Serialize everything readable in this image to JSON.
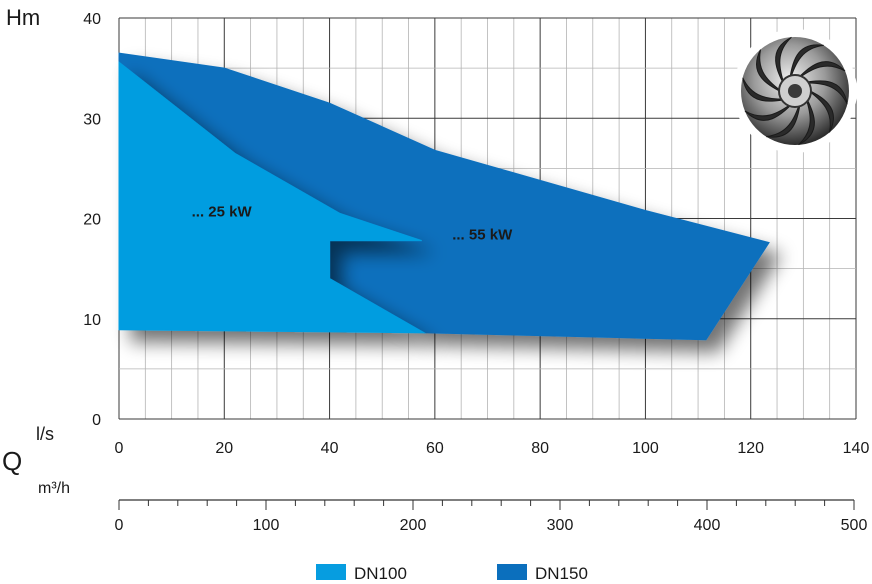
{
  "chart_data": {
    "type": "area",
    "ylabel": "Hm",
    "xlabel": "Q",
    "x_unit_primary": "l/s",
    "x_unit_secondary": "m³/h",
    "xlim": [
      0,
      140
    ],
    "ylim": [
      0,
      40
    ],
    "x_ticks": [
      "0",
      "20",
      "40",
      "60",
      "80",
      "100",
      "120",
      "140"
    ],
    "y_ticks": [
      "0",
      "10",
      "20",
      "30",
      "40"
    ],
    "secondary_xlim": [
      0,
      500
    ],
    "secondary_ticks": [
      "0",
      "100",
      "200",
      "300",
      "400",
      "500"
    ],
    "grid": true,
    "legend_position": "bottom",
    "series": [
      {
        "name": "DN100",
        "color": "#069de0",
        "annotation": "... 25 kW",
        "annotation_at": [
          19.5,
          20.2
        ],
        "polygon": [
          [
            0,
            35.6
          ],
          [
            22,
            26.5
          ],
          [
            42,
            20.5
          ],
          [
            57.5,
            17.8
          ],
          [
            40,
            17.8
          ],
          [
            40,
            14
          ],
          [
            58,
            8.6
          ],
          [
            0,
            8.9
          ]
        ]
      },
      {
        "name": "DN150",
        "color": "#0b6fbd",
        "annotation": "... 55 kW",
        "annotation_at": [
          69,
          17.9
        ],
        "polygon": [
          [
            0,
            36.5
          ],
          [
            20,
            35
          ],
          [
            40,
            31.5
          ],
          [
            60,
            26.8
          ],
          [
            80,
            23.8
          ],
          [
            100,
            20.8
          ],
          [
            123.5,
            17.6
          ],
          [
            111.5,
            7.9
          ],
          [
            58,
            8.6
          ],
          [
            40,
            14
          ],
          [
            40,
            17.8
          ],
          [
            57.5,
            17.8
          ],
          [
            42,
            20.5
          ],
          [
            22,
            26.5
          ],
          [
            0,
            35.6
          ]
        ]
      }
    ]
  },
  "illustration": {
    "icon": "impeller-icon"
  }
}
